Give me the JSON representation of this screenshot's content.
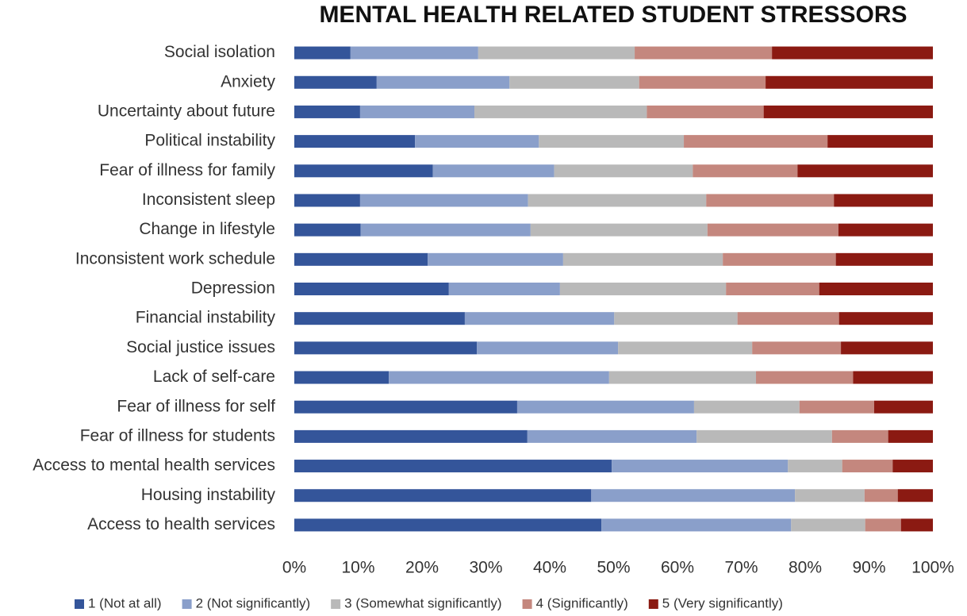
{
  "chart_data": {
    "type": "bar",
    "orientation": "horizontal",
    "stacked": true,
    "title": "MENTAL HEALTH RELATED STUDENT STRESSORS",
    "categories": [
      "Social isolation",
      "Anxiety",
      "Uncertainty about future",
      "Political instability",
      "Fear of illness for family",
      "Inconsistent sleep",
      "Change in lifestyle",
      "Inconsistent work schedule",
      "Depression",
      "Financial instability",
      "Social justice issues",
      "Lack of self-care",
      "Fear of illness for self",
      "Fear of illness for students",
      "Access to mental health services",
      "Housing instability",
      "Access to health services"
    ],
    "series": [
      {
        "name": "1 (Not at all)",
        "color": "#34559a",
        "values": [
          8.8,
          12.9,
          10.3,
          18.9,
          21.7,
          10.3,
          10.4,
          20.9,
          24.2,
          26.7,
          28.6,
          14.8,
          34.9,
          36.5,
          49.7,
          46.5,
          48.1
        ]
      },
      {
        "name": "2 (Not significantly)",
        "color": "#8a9fca",
        "values": [
          20.0,
          20.8,
          17.9,
          19.4,
          19.0,
          26.3,
          26.6,
          21.2,
          17.4,
          23.4,
          22.1,
          34.5,
          27.7,
          26.5,
          27.6,
          31.9,
          29.7
        ]
      },
      {
        "name": "3 (Somewhat significantly)",
        "color": "#b9b9b9",
        "values": [
          24.5,
          20.3,
          27.0,
          22.7,
          21.7,
          27.9,
          27.7,
          25.0,
          26.0,
          19.3,
          21.0,
          23.0,
          16.5,
          21.2,
          8.5,
          10.9,
          11.6
        ]
      },
      {
        "name": "4 (Significantly)",
        "color": "#c4877e",
        "values": [
          21.5,
          19.8,
          18.3,
          22.5,
          16.4,
          20.0,
          20.5,
          17.7,
          14.6,
          15.9,
          13.9,
          15.2,
          11.7,
          8.8,
          7.9,
          5.2,
          5.6
        ]
      },
      {
        "name": "5 (Very significantly)",
        "color": "#8b1a12",
        "values": [
          25.2,
          26.2,
          26.5,
          16.5,
          21.2,
          15.5,
          14.8,
          15.2,
          17.8,
          14.7,
          14.4,
          12.5,
          9.2,
          7.0,
          6.3,
          5.5,
          5.0
        ]
      }
    ],
    "xlim": [
      0,
      100
    ],
    "xticks": [
      {
        "value": 0,
        "label": "0%"
      },
      {
        "value": 10,
        "label": "10%"
      },
      {
        "value": 20,
        "label": "20%"
      },
      {
        "value": 30,
        "label": "30%"
      },
      {
        "value": 40,
        "label": "40%"
      },
      {
        "value": 50,
        "label": "50%"
      },
      {
        "value": 60,
        "label": "60%"
      },
      {
        "value": 70,
        "label": "70%"
      },
      {
        "value": 80,
        "label": "80%"
      },
      {
        "value": 90,
        "label": "90%"
      },
      {
        "value": 100,
        "label": "100%"
      }
    ],
    "legend": "bottom"
  }
}
